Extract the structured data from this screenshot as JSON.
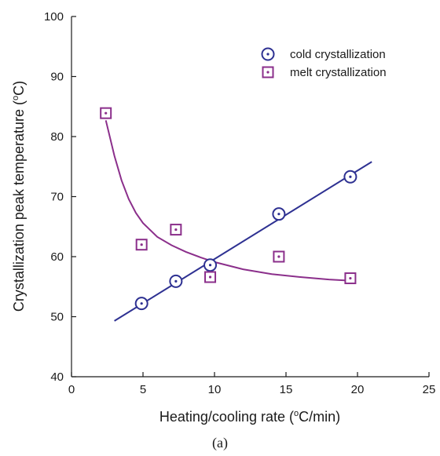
{
  "chart_data": {
    "type": "scatter",
    "xlabel_prefix": "Heating/cooling rate (",
    "xlabel_unit": "C/min)",
    "ylabel_prefix": "Crystallization peak temperature (",
    "ylabel_unit": "C)",
    "degree_symbol": "o",
    "caption": "(a)",
    "xlim": [
      0,
      25
    ],
    "ylim": [
      40,
      100
    ],
    "xticks": [
      0,
      5,
      10,
      15,
      20,
      25
    ],
    "yticks": [
      40,
      50,
      60,
      70,
      80,
      90,
      100
    ],
    "grid": false,
    "legend_position": "top-right",
    "series": [
      {
        "name": "cold crystallization",
        "marker": "circle-dot",
        "color": "#2e3192",
        "points": [
          {
            "x": 4.9,
            "y": 52.2
          },
          {
            "x": 7.3,
            "y": 55.9
          },
          {
            "x": 9.7,
            "y": 58.6
          },
          {
            "x": 14.5,
            "y": 67.1
          },
          {
            "x": 19.5,
            "y": 73.3
          }
        ],
        "fit": {
          "kind": "linear",
          "x_range": [
            3.0,
            21.0
          ],
          "y_range": [
            49.3,
            75.8
          ]
        }
      },
      {
        "name": "melt crystallization",
        "marker": "square-dot",
        "color": "#8b2f8b",
        "points": [
          {
            "x": 2.4,
            "y": 83.9
          },
          {
            "x": 4.9,
            "y": 62.0
          },
          {
            "x": 7.3,
            "y": 64.5
          },
          {
            "x": 9.7,
            "y": 56.6
          },
          {
            "x": 14.5,
            "y": 60.0
          },
          {
            "x": 19.5,
            "y": 56.4
          }
        ],
        "fit": {
          "kind": "decay",
          "x": [
            2.4,
            3.0,
            3.5,
            4.0,
            4.5,
            5.0,
            6.0,
            7.0,
            8.0,
            9.0,
            10.0,
            12.0,
            14.0,
            16.0,
            18.0,
            19.5
          ],
          "y": [
            82.7,
            76.8,
            72.7,
            69.6,
            67.3,
            65.6,
            63.3,
            61.9,
            60.8,
            59.9,
            59.1,
            57.9,
            57.1,
            56.6,
            56.2,
            56.0
          ]
        }
      }
    ]
  }
}
